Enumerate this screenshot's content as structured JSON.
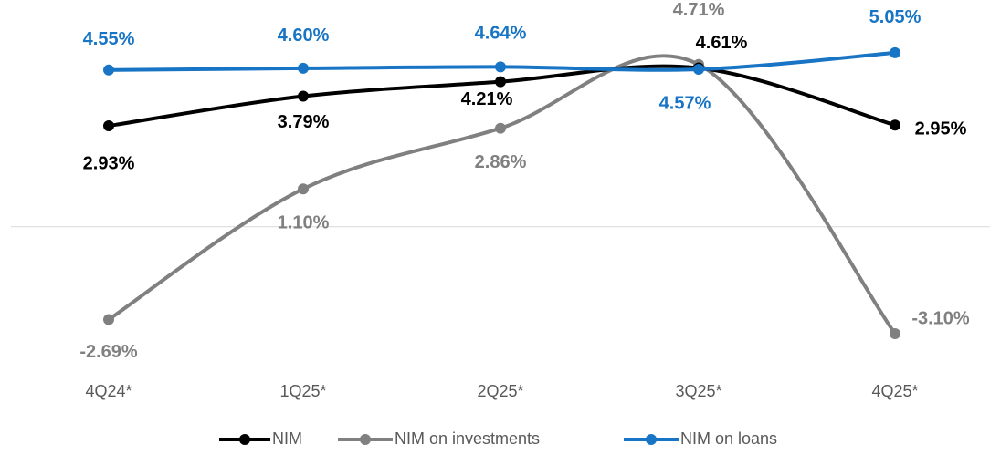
{
  "chart_data": {
    "type": "line",
    "categories": [
      "4Q24*",
      "1Q25*",
      "2Q25*",
      "3Q25*",
      "4Q25*"
    ],
    "series": [
      {
        "name": "NIM",
        "color": "#000000",
        "values": [
          2.93,
          3.79,
          4.21,
          4.61,
          2.95
        ],
        "value_labels": [
          "2.93%",
          "3.79%",
          "4.21%",
          "4.61%",
          "2.95%"
        ]
      },
      {
        "name": "NIM on investments",
        "color": "#808080",
        "values": [
          -2.69,
          1.1,
          2.86,
          4.71,
          -3.1
        ],
        "value_labels": [
          "-2.69%",
          "1.10%",
          "2.86%",
          "4.71%",
          "-3.10%"
        ]
      },
      {
        "name": "NIM on loans",
        "color": "#1874c4",
        "values": [
          4.55,
          4.6,
          4.64,
          4.57,
          5.05
        ],
        "value_labels": [
          "4.55%",
          "4.60%",
          "4.64%",
          "4.57%",
          "5.05%"
        ]
      }
    ],
    "ylim": [
      -4,
      6
    ],
    "legend": "bottom",
    "smooth": true
  }
}
